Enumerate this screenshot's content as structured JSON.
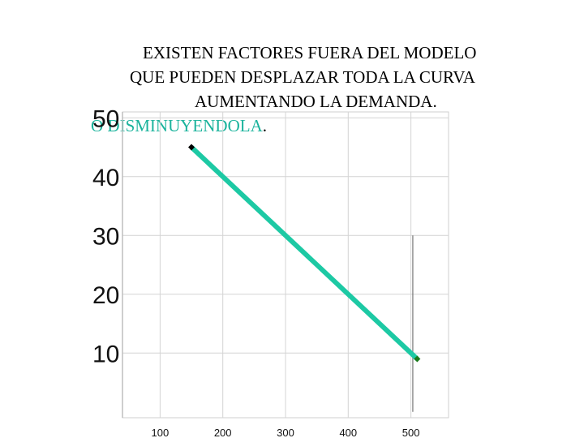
{
  "caption": {
    "line1": "EXISTEN FACTORES FUERA DEL MODELO",
    "line2": "QUE PUEDEN DESPLAZAR TODA LA CURVA",
    "line3": "AUMENTANDO LA DEMANDA.",
    "line4_accent": "O DISMINUYENDOLA",
    "line4_tail": "."
  },
  "chart_data": {
    "type": "line",
    "x_ticks": [
      "100",
      "200",
      "300",
      "400",
      "500"
    ],
    "y_ticks": [
      "10",
      "20",
      "30",
      "40",
      "50"
    ],
    "xlim": [
      40,
      560
    ],
    "ylim": [
      -1,
      51
    ],
    "grid": true,
    "series": [
      {
        "points": [
          [
            150,
            45
          ],
          [
            510,
            9
          ]
        ],
        "color": "#1dc9a4"
      }
    ],
    "markers": [
      {
        "x": 150,
        "y": 45,
        "color": "#000000"
      },
      {
        "x": 510,
        "y": 9,
        "color": "#1b7a1b"
      }
    ],
    "reference_line": {
      "x": 503,
      "y_from": 30,
      "y_to": 0
    }
  }
}
